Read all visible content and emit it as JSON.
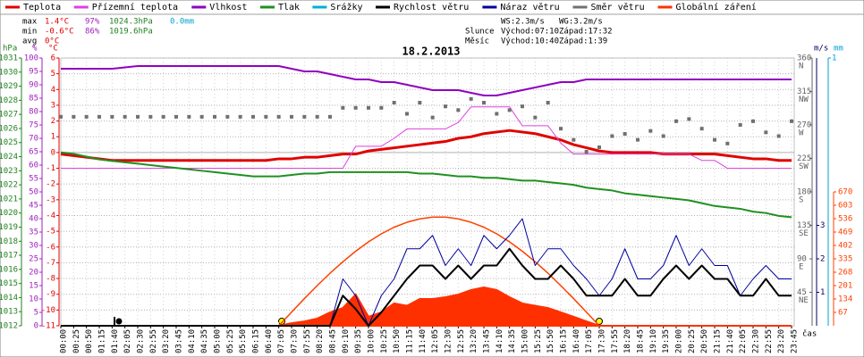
{
  "legend": [
    "Teplota",
    "Přízemní teplota",
    "Vlhkost",
    "Tlak",
    "Srážky",
    "Rychlost větru",
    "Náraz větru",
    "Směr větru",
    "Globální záření"
  ],
  "stats": [
    [
      "max",
      "1.4°C",
      "97%",
      "1024.3hPa",
      "0.0mm"
    ],
    [
      "min",
      "-0.6°C",
      "86%",
      "1019.6hPa"
    ],
    [
      "avg",
      "0°C"
    ]
  ],
  "wind_sun": [
    [
      "WS:2.3m/s",
      "WG:3.2m/s"
    ],
    [
      "Slunce",
      "Východ:07:10",
      "Západ:17:32"
    ],
    [
      "Měsíc",
      "Východ:10:40",
      "Západ:1:39"
    ]
  ],
  "chart_data": {
    "type": "line",
    "title": "18.2.2013",
    "x_label": "čas",
    "grid": true,
    "categories": [
      "00:00",
      "00:25",
      "00:50",
      "01:15",
      "01:40",
      "02:05",
      "02:30",
      "02:55",
      "03:20",
      "03:45",
      "04:10",
      "04:35",
      "05:00",
      "05:25",
      "05:50",
      "06:15",
      "06:40",
      "07:05",
      "07:30",
      "07:55",
      "08:20",
      "08:45",
      "09:10",
      "09:35",
      "10:00",
      "10:25",
      "10:50",
      "11:15",
      "11:40",
      "12:05",
      "12:30",
      "12:55",
      "13:20",
      "13:45",
      "14:10",
      "14:35",
      "15:00",
      "15:25",
      "15:50",
      "16:15",
      "16:40",
      "17:05",
      "17:30",
      "17:55",
      "18:20",
      "18:45",
      "19:10",
      "19:35",
      "20:00",
      "20:25",
      "20:50",
      "21:15",
      "21:40",
      "22:05",
      "22:30",
      "22:55",
      "23:20",
      "23:45"
    ],
    "y_axes": {
      "press": {
        "label": "hPa",
        "color": "#208020",
        "lim": [
          1012,
          1031
        ],
        "ticks": [
          1012,
          1013,
          1014,
          1015,
          1016,
          1017,
          1018,
          1019,
          1020,
          1021,
          1022,
          1023,
          1024,
          1025,
          1026,
          1027,
          1028,
          1029,
          1030,
          1031
        ]
      },
      "hum": {
        "label": "%",
        "color": "#a020c0",
        "lim": [
          0,
          100
        ],
        "ticks": [
          0,
          5,
          10,
          15,
          20,
          25,
          30,
          35,
          40,
          45,
          50,
          55,
          60,
          65,
          70,
          75,
          80,
          85,
          90,
          95,
          100
        ]
      },
      "temp": {
        "label": "°C",
        "color": "#e00000",
        "lim": [
          -11,
          6
        ],
        "ticks": [
          -11,
          -10,
          -9,
          -8,
          -7,
          -6,
          -5,
          -4,
          -3,
          -2,
          -1,
          0,
          1,
          2,
          3,
          4,
          5,
          6
        ]
      },
      "dir": {
        "color": "#606060",
        "lim": [
          0,
          360
        ],
        "ticks": [
          45,
          90,
          135,
          180,
          225,
          270,
          315,
          360
        ],
        "tick_names": [
          "NE",
          "E",
          "SE",
          "S",
          "SW",
          "W",
          "NW",
          "N"
        ]
      },
      "wind": {
        "label": "m/s",
        "color": "#000060",
        "lim": [
          0,
          8
        ],
        "ticks": [
          1,
          2,
          3
        ]
      },
      "rain": {
        "label": "mm",
        "color": "#00a0d0",
        "lim": [
          0,
          1
        ],
        "ticks": [
          1
        ]
      },
      "solar": {
        "color": "#ff4000",
        "lim": [
          0,
          670
        ],
        "ticks": [
          67,
          134,
          201,
          268,
          335,
          402,
          469,
          536,
          603,
          670
        ]
      }
    },
    "series": [
      {
        "name": "Teplota",
        "color": "#e00000",
        "type": "line",
        "axis": "temp",
        "width": 3,
        "values": [
          -0.1,
          -0.2,
          -0.3,
          -0.4,
          -0.5,
          -0.5,
          -0.5,
          -0.5,
          -0.5,
          -0.5,
          -0.5,
          -0.5,
          -0.5,
          -0.5,
          -0.5,
          -0.5,
          -0.5,
          -0.4,
          -0.4,
          -0.3,
          -0.3,
          -0.2,
          -0.1,
          -0.1,
          0.1,
          0.2,
          0.3,
          0.4,
          0.5,
          0.6,
          0.7,
          0.9,
          1.0,
          1.2,
          1.3,
          1.4,
          1.3,
          1.2,
          1.0,
          0.8,
          0.5,
          0.3,
          0.1,
          0.0,
          0.0,
          0.0,
          0.0,
          -0.1,
          -0.1,
          -0.1,
          -0.1,
          -0.1,
          -0.2,
          -0.3,
          -0.4,
          -0.4,
          -0.5,
          -0.5
        ]
      },
      {
        "name": "Přízemní teplota",
        "color": "#e040e0",
        "type": "line",
        "axis": "temp",
        "width": 1,
        "values": [
          -1.0,
          -1.0,
          -1.0,
          -1.0,
          -1.0,
          -1.0,
          -1.0,
          -1.0,
          -1.0,
          -1.0,
          -1.0,
          -1.0,
          -1.0,
          -1.0,
          -1.0,
          -1.0,
          -1.0,
          -1.0,
          -1.0,
          -1.0,
          -1.0,
          -1.0,
          -1.0,
          0.4,
          0.4,
          0.4,
          0.9,
          1.5,
          1.5,
          1.5,
          1.5,
          1.9,
          2.9,
          2.9,
          2.9,
          2.9,
          1.7,
          1.7,
          1.7,
          0.6,
          -0.1,
          -0.1,
          -0.1,
          -0.1,
          -0.1,
          -0.1,
          -0.1,
          -0.1,
          -0.1,
          -0.1,
          -0.5,
          -0.5,
          -1.0,
          -1.0,
          -1.0,
          -1.0,
          -1.0,
          -1.0
        ]
      },
      {
        "name": "Vlhkost",
        "color": "#9000c0",
        "type": "line",
        "axis": "hum",
        "width": 2,
        "values": [
          96,
          96,
          96,
          96,
          96,
          96.5,
          97,
          97,
          97,
          97,
          97,
          97,
          97,
          97,
          97,
          97,
          97,
          97,
          96,
          95,
          95,
          94,
          93,
          92,
          92,
          91,
          91,
          90,
          89,
          88,
          88,
          88,
          87,
          86,
          86,
          87,
          88,
          89,
          90,
          91,
          91,
          92,
          92,
          92,
          92,
          92,
          92,
          92,
          92,
          92,
          92,
          92,
          92,
          92,
          92,
          92,
          92,
          92
        ]
      },
      {
        "name": "Tlak",
        "color": "#209020",
        "type": "line",
        "axis": "press",
        "width": 2,
        "values": [
          1024.3,
          1024.2,
          1024.0,
          1023.8,
          1023.7,
          1023.6,
          1023.5,
          1023.4,
          1023.3,
          1023.2,
          1023.1,
          1023.0,
          1022.9,
          1022.8,
          1022.7,
          1022.6,
          1022.6,
          1022.6,
          1022.7,
          1022.8,
          1022.8,
          1022.9,
          1022.9,
          1022.9,
          1022.9,
          1022.9,
          1022.9,
          1022.9,
          1022.8,
          1022.8,
          1022.7,
          1022.6,
          1022.6,
          1022.5,
          1022.5,
          1022.4,
          1022.3,
          1022.3,
          1022.2,
          1022.1,
          1022.0,
          1021.8,
          1021.7,
          1021.6,
          1021.4,
          1021.3,
          1021.2,
          1021.1,
          1021.0,
          1020.9,
          1020.7,
          1020.5,
          1020.4,
          1020.3,
          1020.1,
          1020.0,
          1019.8,
          1019.7
        ]
      },
      {
        "name": "Srážky",
        "color": "#00b0d0",
        "type": "line",
        "axis": "rain",
        "width": 1,
        "values": [
          0,
          0,
          0,
          0,
          0,
          0,
          0,
          0,
          0,
          0,
          0,
          0,
          0,
          0,
          0,
          0,
          0,
          0,
          0,
          0,
          0,
          0,
          0,
          0,
          0,
          0,
          0,
          0,
          0,
          0,
          0,
          0,
          0,
          0,
          0,
          0,
          0,
          0,
          0,
          0,
          0,
          0,
          0,
          0,
          0,
          0,
          0,
          0,
          0,
          0,
          0,
          0,
          0,
          0,
          0,
          0,
          0,
          0
        ]
      },
      {
        "name": "Globální záření",
        "color": "#ff3000",
        "type": "area",
        "axis": "solar",
        "values": [
          0,
          0,
          0,
          0,
          0,
          0,
          0,
          0,
          0,
          0,
          0,
          0,
          0,
          0,
          0,
          0,
          0,
          0,
          13,
          22,
          36,
          67,
          89,
          156,
          45,
          67,
          112,
          100,
          134,
          134,
          143,
          156,
          179,
          192,
          179,
          143,
          112,
          100,
          89,
          67,
          45,
          22,
          0,
          0,
          0,
          0,
          0,
          0,
          0,
          0,
          0,
          0,
          0,
          0,
          0,
          0,
          0,
          0
        ]
      },
      {
        "color": "#ff4000",
        "type": "line",
        "axis": "solar",
        "width": 1.5,
        "values": [
          null,
          null,
          null,
          null,
          null,
          null,
          null,
          null,
          null,
          null,
          null,
          null,
          null,
          null,
          null,
          null,
          null,
          0,
          68,
          136,
          201,
          263,
          320,
          373,
          420,
          460,
          493,
          518,
          535,
          544,
          544,
          535,
          518,
          493,
          460,
          420,
          373,
          320,
          263,
          201,
          136,
          68,
          0,
          null,
          null,
          null,
          null,
          null,
          null,
          null,
          null,
          null,
          null,
          null,
          null,
          null,
          null,
          null
        ]
      },
      {
        "name": "Směr větru",
        "color": "#707070",
        "type": "scatter",
        "axis": "dir",
        "values": [
          281,
          281,
          281,
          281,
          281,
          281,
          281,
          281,
          281,
          281,
          281,
          281,
          281,
          281,
          281,
          281,
          281,
          281,
          281,
          281,
          281,
          281,
          293,
          293,
          293,
          293,
          300,
          285,
          300,
          280,
          295,
          290,
          305,
          300,
          285,
          290,
          295,
          280,
          300,
          265,
          250,
          234,
          240,
          255,
          258,
          250,
          262,
          255,
          275,
          278,
          265,
          250,
          245,
          270,
          275,
          260,
          255,
          275
        ]
      },
      {
        "name": "Náraz větru",
        "color": "#0000a0",
        "type": "line",
        "axis": "wind",
        "width": 1,
        "values": [
          0,
          0,
          0,
          0,
          0,
          0,
          0,
          0,
          0,
          0,
          0,
          0,
          0,
          0,
          0,
          0,
          0,
          0,
          0,
          0,
          0,
          0,
          1.4,
          0.9,
          0,
          0.9,
          1.4,
          2.3,
          2.3,
          2.7,
          1.8,
          2.3,
          1.8,
          2.7,
          2.3,
          2.7,
          3.2,
          1.8,
          2.3,
          2.3,
          1.8,
          1.4,
          0.9,
          1.4,
          2.3,
          1.4,
          1.4,
          1.8,
          2.7,
          1.8,
          2.3,
          1.8,
          1.8,
          0.9,
          1.4,
          1.8,
          1.4,
          1.4
        ]
      },
      {
        "name": "Rychlost větru",
        "color": "#000000",
        "type": "line",
        "axis": "wind",
        "width": 2,
        "values": [
          0,
          0,
          0,
          0,
          0,
          0,
          0,
          0,
          0,
          0,
          0,
          0,
          0,
          0,
          0,
          0,
          0,
          0,
          0,
          0,
          0,
          0,
          0.9,
          0.5,
          0,
          0.4,
          0.9,
          1.4,
          1.8,
          1.8,
          1.4,
          1.8,
          1.4,
          1.8,
          1.8,
          2.3,
          1.8,
          1.4,
          1.4,
          1.8,
          1.4,
          0.9,
          0.9,
          0.9,
          1.4,
          0.9,
          0.9,
          1.4,
          1.8,
          1.4,
          1.8,
          1.4,
          1.4,
          0.9,
          0.9,
          1.4,
          0.9,
          0.9
        ]
      }
    ]
  }
}
